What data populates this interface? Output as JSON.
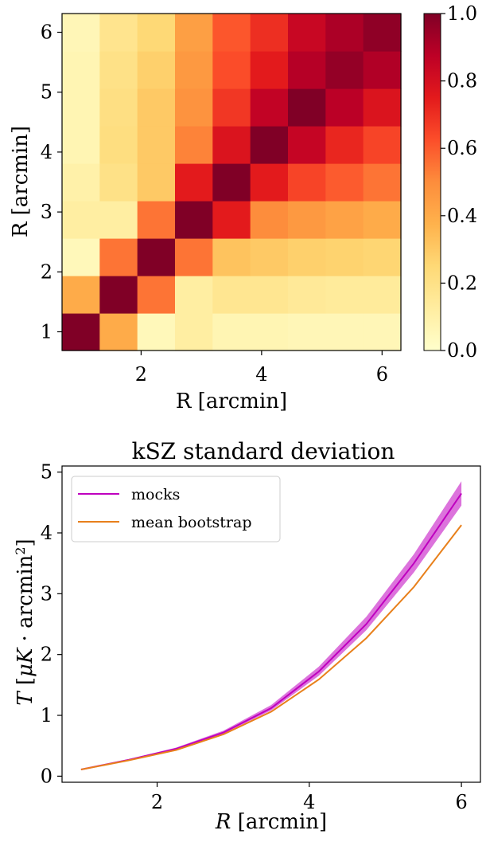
{
  "chart_data": [
    {
      "type": "heatmap",
      "x": [
        1,
        1.625,
        2.25,
        2.875,
        3.5,
        4.125,
        4.75,
        5.375,
        6
      ],
      "y": [
        1,
        1.625,
        2.25,
        2.875,
        3.5,
        4.125,
        4.75,
        5.375,
        6
      ],
      "z": [
        [
          1.0,
          0.4,
          0.05,
          0.12,
          0.07,
          0.07,
          0.06,
          0.06,
          0.06
        ],
        [
          0.4,
          1.0,
          0.55,
          0.12,
          0.17,
          0.17,
          0.15,
          0.14,
          0.14
        ],
        [
          0.05,
          0.55,
          1.0,
          0.55,
          0.32,
          0.3,
          0.28,
          0.27,
          0.26
        ],
        [
          0.12,
          0.12,
          0.55,
          1.0,
          0.75,
          0.5,
          0.46,
          0.43,
          0.4
        ],
        [
          0.1,
          0.2,
          0.3,
          0.75,
          1.0,
          0.75,
          0.65,
          0.6,
          0.55
        ],
        [
          0.07,
          0.22,
          0.3,
          0.52,
          0.78,
          1.0,
          0.85,
          0.72,
          0.65
        ],
        [
          0.07,
          0.21,
          0.3,
          0.48,
          0.68,
          0.86,
          1.0,
          0.88,
          0.78
        ],
        [
          0.07,
          0.2,
          0.28,
          0.46,
          0.63,
          0.75,
          0.89,
          0.96,
          0.9
        ],
        [
          0.06,
          0.18,
          0.25,
          0.44,
          0.61,
          0.7,
          0.84,
          0.91,
          0.97
        ]
      ],
      "xlabel": "R [arcmin]",
      "ylabel": "R [arcmin]",
      "xticks": [
        "2",
        "4",
        "6"
      ],
      "yticks": [
        "1",
        "2",
        "3",
        "4",
        "5",
        "6"
      ],
      "colorbar": {
        "range": [
          0.0,
          1.0
        ],
        "ticks": [
          "0.0",
          "0.2",
          "0.4",
          "0.6",
          "0.8",
          "1.0"
        ],
        "colormap": "YlOrRd"
      }
    },
    {
      "type": "line",
      "title": "kSZ standard deviation",
      "xlabel": "R [arcmin]",
      "ylabel": "T [μK · arcmin²]",
      "xlim": [
        0.75,
        6.25
      ],
      "ylim": [
        -0.1,
        5.1
      ],
      "xticks": [
        "2",
        "4",
        "6"
      ],
      "yticks": [
        "0",
        "1",
        "2",
        "3",
        "4",
        "5"
      ],
      "x": [
        1,
        1.625,
        2.25,
        2.875,
        3.5,
        4.125,
        4.75,
        5.375,
        6
      ],
      "series": [
        {
          "name": "mocks",
          "color": "#bf00bf",
          "values": [
            0.11,
            0.27,
            0.45,
            0.72,
            1.12,
            1.72,
            2.5,
            3.5,
            4.65
          ],
          "band_low": [
            0.1,
            0.26,
            0.43,
            0.7,
            1.08,
            1.65,
            2.4,
            3.35,
            4.45
          ],
          "band_high": [
            0.12,
            0.28,
            0.47,
            0.75,
            1.17,
            1.8,
            2.62,
            3.65,
            4.85
          ]
        },
        {
          "name": "mean bootstrap",
          "color": "#e8801b",
          "values": [
            0.11,
            0.26,
            0.43,
            0.69,
            1.06,
            1.59,
            2.27,
            3.11,
            4.13
          ]
        }
      ],
      "legend": "top-left"
    }
  ]
}
